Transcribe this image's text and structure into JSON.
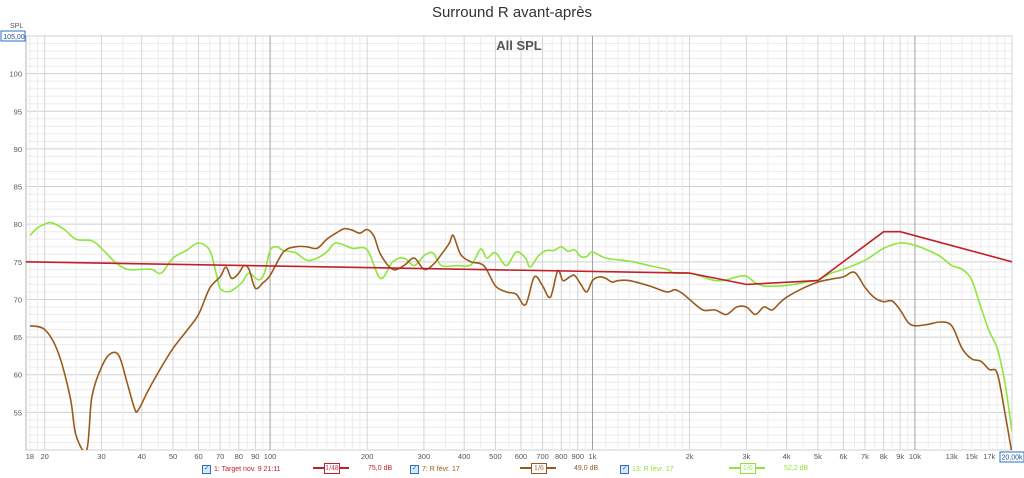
{
  "title": "Surround R avant-après",
  "chart_data": {
    "type": "line",
    "plot_label": "All SPL",
    "ylabel": "SPL",
    "x_scale": "log",
    "xlim": [
      17.5,
      20000
    ],
    "ylim": [
      50,
      105
    ],
    "y_max_label": "105,00",
    "x_max_label": "20,00k",
    "y_ticks": [
      {
        "v": 55,
        "label": "55"
      },
      {
        "v": 60,
        "label": "60"
      },
      {
        "v": 65,
        "label": "65"
      },
      {
        "v": 70,
        "label": "70"
      },
      {
        "v": 75,
        "label": "75"
      },
      {
        "v": 80,
        "label": "80"
      },
      {
        "v": 85,
        "label": "85"
      },
      {
        "v": 90,
        "label": "90"
      },
      {
        "v": 95,
        "label": "95"
      },
      {
        "v": 100,
        "label": "100"
      }
    ],
    "x_ticks": [
      {
        "v": 18,
        "label": "18"
      },
      {
        "v": 20,
        "label": "20"
      },
      {
        "v": 30,
        "label": "30"
      },
      {
        "v": 40,
        "label": "40"
      },
      {
        "v": 50,
        "label": "50"
      },
      {
        "v": 60,
        "label": "60"
      },
      {
        "v": 70,
        "label": "70"
      },
      {
        "v": 80,
        "label": "80"
      },
      {
        "v": 90,
        "label": "90"
      },
      {
        "v": 100,
        "label": "100"
      },
      {
        "v": 200,
        "label": "200"
      },
      {
        "v": 300,
        "label": "300"
      },
      {
        "v": 400,
        "label": "400"
      },
      {
        "v": 500,
        "label": "500"
      },
      {
        "v": 600,
        "label": "600"
      },
      {
        "v": 700,
        "label": "700"
      },
      {
        "v": 800,
        "label": "800"
      },
      {
        "v": 900,
        "label": "900"
      },
      {
        "v": 1000,
        "label": "1k"
      },
      {
        "v": 2000,
        "label": "2k"
      },
      {
        "v": 3000,
        "label": "3k"
      },
      {
        "v": 4000,
        "label": "4k"
      },
      {
        "v": 5000,
        "label": "5k"
      },
      {
        "v": 6000,
        "label": "6k"
      },
      {
        "v": 7000,
        "label": "7k"
      },
      {
        "v": 8000,
        "label": "8k"
      },
      {
        "v": 9000,
        "label": "9k"
      },
      {
        "v": 10000,
        "label": "10k"
      },
      {
        "v": 13000,
        "label": "13k"
      },
      {
        "v": 15000,
        "label": "15k"
      },
      {
        "v": 17000,
        "label": "17k"
      }
    ],
    "series": [
      {
        "name": "1: Target nov. 9 21:11",
        "smoothing": "1/48",
        "value_label": "75,0 dB",
        "color": "#c0202a",
        "points": [
          [
            17.5,
            75
          ],
          [
            2000,
            73.5
          ],
          [
            3000,
            72
          ],
          [
            5000,
            72.5
          ],
          [
            8000,
            79
          ],
          [
            9000,
            79
          ],
          [
            20000,
            75
          ]
        ]
      },
      {
        "name": "7: R févr. 17",
        "smoothing": "1/6",
        "value_label": "49,0 dB",
        "color": "#9a5a1c",
        "points": [
          [
            18,
            66.5
          ],
          [
            20,
            66
          ],
          [
            22,
            63
          ],
          [
            24,
            57
          ],
          [
            25,
            52
          ],
          [
            27,
            50
          ],
          [
            28,
            57
          ],
          [
            30,
            61
          ],
          [
            32,
            62.8
          ],
          [
            34,
            62.5
          ],
          [
            36,
            59
          ],
          [
            38,
            55.5
          ],
          [
            39,
            55.3
          ],
          [
            42,
            58
          ],
          [
            46,
            61
          ],
          [
            50,
            63.5
          ],
          [
            55,
            65.8
          ],
          [
            60,
            68
          ],
          [
            65,
            71.5
          ],
          [
            70,
            73
          ],
          [
            73,
            74.3
          ],
          [
            76,
            72.8
          ],
          [
            80,
            73.5
          ],
          [
            83,
            74.5
          ],
          [
            86,
            74
          ],
          [
            90,
            71.5
          ],
          [
            95,
            72.2
          ],
          [
            100,
            73.2
          ],
          [
            110,
            76.3
          ],
          [
            120,
            77
          ],
          [
            130,
            77
          ],
          [
            140,
            76.8
          ],
          [
            150,
            78
          ],
          [
            160,
            78.8
          ],
          [
            170,
            79.4
          ],
          [
            180,
            79.2
          ],
          [
            190,
            78.8
          ],
          [
            200,
            79.3
          ],
          [
            210,
            78.4
          ],
          [
            220,
            76
          ],
          [
            240,
            74
          ],
          [
            260,
            74.5
          ],
          [
            280,
            75.5
          ],
          [
            300,
            74
          ],
          [
            320,
            74.6
          ],
          [
            340,
            76
          ],
          [
            360,
            77.5
          ],
          [
            370,
            78.5
          ],
          [
            390,
            76
          ],
          [
            420,
            75
          ],
          [
            460,
            74.5
          ],
          [
            500,
            71.8
          ],
          [
            540,
            71
          ],
          [
            580,
            70.7
          ],
          [
            620,
            69.3
          ],
          [
            660,
            73
          ],
          [
            700,
            71.8
          ],
          [
            740,
            70.3
          ],
          [
            780,
            73.8
          ],
          [
            810,
            72.5
          ],
          [
            850,
            73
          ],
          [
            880,
            73.2
          ],
          [
            920,
            72
          ],
          [
            960,
            71
          ],
          [
            1000,
            72.5
          ],
          [
            1050,
            73
          ],
          [
            1100,
            72.8
          ],
          [
            1150,
            72.3
          ],
          [
            1200,
            72.5
          ],
          [
            1300,
            72.5
          ],
          [
            1500,
            71.8
          ],
          [
            1700,
            71
          ],
          [
            1800,
            71.3
          ],
          [
            1900,
            70.8
          ],
          [
            2000,
            70
          ],
          [
            2200,
            68.6
          ],
          [
            2400,
            68.6
          ],
          [
            2600,
            68
          ],
          [
            2800,
            69
          ],
          [
            3000,
            69
          ],
          [
            3200,
            68
          ],
          [
            3400,
            69
          ],
          [
            3600,
            68.6
          ],
          [
            3800,
            69.5
          ],
          [
            4000,
            70.3
          ],
          [
            4500,
            71.5
          ],
          [
            5000,
            72.3
          ],
          [
            5500,
            72.7
          ],
          [
            6000,
            73
          ],
          [
            6500,
            73.6
          ],
          [
            7000,
            71.6
          ],
          [
            7500,
            70.2
          ],
          [
            8000,
            69.7
          ],
          [
            8500,
            69.8
          ],
          [
            9000,
            68.6
          ],
          [
            9500,
            67
          ],
          [
            10000,
            66.5
          ],
          [
            11000,
            66.7
          ],
          [
            12000,
            67
          ],
          [
            13000,
            66.5
          ],
          [
            14000,
            63.5
          ],
          [
            15000,
            62.1
          ],
          [
            16000,
            61.8
          ],
          [
            17000,
            60.7
          ],
          [
            18000,
            60.2
          ],
          [
            19000,
            55
          ],
          [
            20000,
            49.5
          ]
        ]
      },
      {
        "name": "13: R févr. 17",
        "smoothing": "1/6",
        "value_label": "52,2 dB",
        "color": "#8ee63b",
        "points": [
          [
            18,
            78.5
          ],
          [
            19,
            79.5
          ],
          [
            20,
            80
          ],
          [
            21,
            80.2
          ],
          [
            23,
            79.3
          ],
          [
            25,
            78
          ],
          [
            28,
            77.8
          ],
          [
            30,
            76.8
          ],
          [
            33,
            75
          ],
          [
            36,
            74
          ],
          [
            40,
            74
          ],
          [
            43,
            74
          ],
          [
            46,
            73.5
          ],
          [
            50,
            75.5
          ],
          [
            55,
            76.5
          ],
          [
            60,
            77.5
          ],
          [
            65,
            76.5
          ],
          [
            68,
            73.5
          ],
          [
            70,
            71.5
          ],
          [
            74,
            71
          ],
          [
            78,
            71.5
          ],
          [
            82,
            72.3
          ],
          [
            86,
            73.5
          ],
          [
            92,
            72.6
          ],
          [
            96,
            73.5
          ],
          [
            100,
            76.5
          ],
          [
            105,
            77
          ],
          [
            110,
            76.5
          ],
          [
            120,
            76.2
          ],
          [
            130,
            75.2
          ],
          [
            140,
            75.5
          ],
          [
            150,
            76.3
          ],
          [
            160,
            77.5
          ],
          [
            180,
            76.8
          ],
          [
            200,
            76.6
          ],
          [
            220,
            72.8
          ],
          [
            240,
            75
          ],
          [
            260,
            75.5
          ],
          [
            280,
            74.5
          ],
          [
            300,
            75.8
          ],
          [
            320,
            76.2
          ],
          [
            340,
            74.5
          ],
          [
            380,
            74.5
          ],
          [
            420,
            74.6
          ],
          [
            450,
            76.7
          ],
          [
            470,
            75.5
          ],
          [
            500,
            76.2
          ],
          [
            540,
            74.5
          ],
          [
            580,
            76.3
          ],
          [
            620,
            75.5
          ],
          [
            640,
            74.3
          ],
          [
            680,
            75.8
          ],
          [
            720,
            76.5
          ],
          [
            760,
            76.5
          ],
          [
            800,
            77
          ],
          [
            840,
            76.4
          ],
          [
            880,
            76.6
          ],
          [
            920,
            75.7
          ],
          [
            960,
            75.7
          ],
          [
            1000,
            76.3
          ],
          [
            1100,
            75.5
          ],
          [
            1300,
            75.1
          ],
          [
            1500,
            74.5
          ],
          [
            1700,
            74
          ],
          [
            1800,
            73.5
          ],
          [
            2000,
            73.5
          ],
          [
            2200,
            73
          ],
          [
            2400,
            72.5
          ],
          [
            2600,
            72.6
          ],
          [
            2800,
            73
          ],
          [
            3000,
            73.1
          ],
          [
            3200,
            72.2
          ],
          [
            3400,
            71.8
          ],
          [
            3800,
            71.8
          ],
          [
            4200,
            72
          ],
          [
            4600,
            72.3
          ],
          [
            5000,
            72.6
          ],
          [
            5500,
            73.5
          ],
          [
            6000,
            74
          ],
          [
            7000,
            75.2
          ],
          [
            8000,
            76.8
          ],
          [
            9000,
            77.5
          ],
          [
            10000,
            77.2
          ],
          [
            11000,
            76.5
          ],
          [
            12000,
            75.7
          ],
          [
            13000,
            74.5
          ],
          [
            14000,
            74
          ],
          [
            15000,
            72.6
          ],
          [
            16000,
            69
          ],
          [
            17000,
            65.8
          ],
          [
            18000,
            63.5
          ],
          [
            19000,
            59
          ],
          [
            20000,
            52.5
          ]
        ]
      }
    ]
  },
  "legend": [
    {
      "checked": true,
      "label": "1: Target nov. 9 21:11",
      "smoothing": "1/48",
      "value": "75,0 dB",
      "color": "#c0202a"
    },
    {
      "checked": true,
      "label": "7: R févr. 17",
      "smoothing": "1/6",
      "value": "49,0 dB",
      "color": "#9a5a1c"
    },
    {
      "checked": true,
      "label": "13: R févr. 17",
      "smoothing": "1/6",
      "value": "52,2 dB",
      "color": "#8ee63b"
    }
  ],
  "check_mark": "✓"
}
